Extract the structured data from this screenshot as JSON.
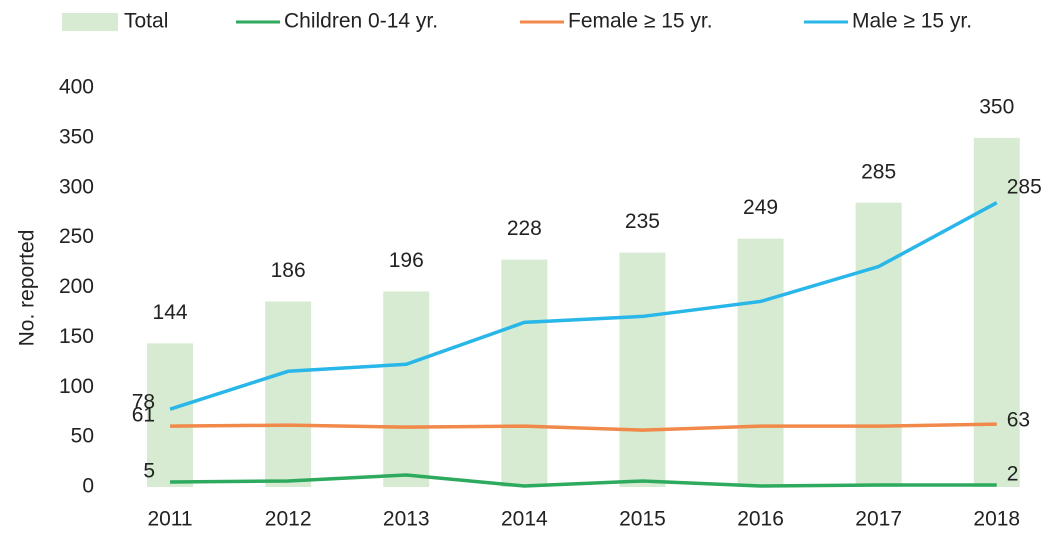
{
  "chart_data": {
    "type": "bar_line",
    "y_label": "No. reported",
    "categories": [
      "2011",
      "2012",
      "2013",
      "2014",
      "2015",
      "2016",
      "2017",
      "2018"
    ],
    "series": [
      {
        "name": "Total",
        "kind": "bar",
        "color": "#d6ebd1",
        "values": [
          144,
          186,
          196,
          228,
          235,
          249,
          285,
          350
        ]
      },
      {
        "name": "Children 0-14 yr.",
        "kind": "line",
        "color": "#2eaa5e",
        "values": [
          5,
          6,
          12,
          1,
          6,
          1,
          2,
          2
        ]
      },
      {
        "name": "Female ≥ 15 yr.",
        "kind": "line",
        "color": "#f0894a",
        "values": [
          61,
          62,
          60,
          61,
          57,
          61,
          61,
          63
        ]
      },
      {
        "name": "Male ≥ 15 yr.",
        "kind": "line",
        "color": "#29b6e8",
        "values": [
          78,
          116,
          123,
          165,
          171,
          186,
          221,
          285
        ]
      }
    ],
    "ylim": [
      0,
      400
    ],
    "yticks": [
      0,
      50,
      100,
      150,
      200,
      250,
      300,
      350,
      400
    ],
    "legend": "top"
  }
}
